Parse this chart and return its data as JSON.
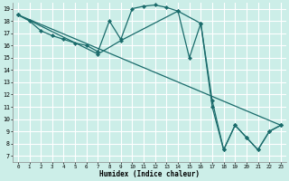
{
  "xlabel": "Humidex (Indice chaleur)",
  "bg_color": "#cceee8",
  "grid_color": "#ffffff",
  "line_color": "#1a6b6b",
  "xlim": [
    -0.5,
    23.5
  ],
  "ylim": [
    6.5,
    19.5
  ],
  "xticks": [
    0,
    1,
    2,
    3,
    4,
    5,
    6,
    7,
    8,
    9,
    10,
    11,
    12,
    13,
    14,
    15,
    16,
    17,
    18,
    19,
    20,
    21,
    22,
    23
  ],
  "yticks": [
    7,
    8,
    9,
    10,
    11,
    12,
    13,
    14,
    15,
    16,
    17,
    18,
    19
  ],
  "line1_x": [
    0,
    1,
    2,
    3,
    4,
    5,
    6,
    7,
    8,
    9,
    10,
    11,
    12,
    13,
    14,
    15,
    16,
    17,
    18,
    19,
    20,
    21,
    22,
    23
  ],
  "line1_y": [
    18.5,
    18.0,
    17.2,
    16.8,
    16.5,
    16.2,
    16.0,
    15.5,
    18.0,
    16.5,
    19.0,
    19.2,
    19.3,
    19.1,
    18.8,
    15.0,
    17.8,
    11.0,
    7.5,
    9.5,
    8.5,
    7.5,
    9.0,
    9.5
  ],
  "line2_x": [
    0,
    23
  ],
  "line2_y": [
    18.5,
    9.5
  ],
  "line3_x": [
    0,
    7,
    9,
    14,
    16,
    17,
    18,
    19,
    20,
    21,
    22,
    23
  ],
  "line3_y": [
    18.5,
    15.3,
    16.4,
    18.8,
    17.8,
    11.5,
    7.5,
    9.5,
    8.5,
    7.5,
    9.0,
    9.5
  ]
}
